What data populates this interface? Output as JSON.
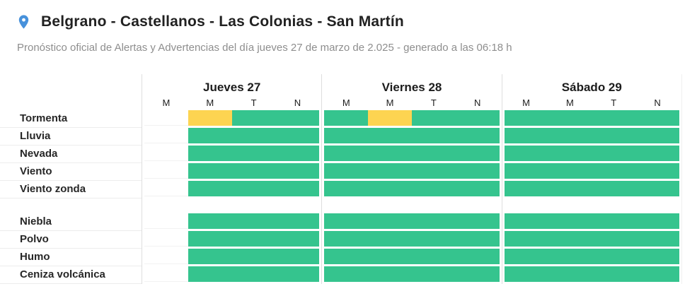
{
  "header": {
    "title": "Belgrano - Castellanos - Las Colonias - San Martín",
    "subtitle": "Pronóstico oficial de Alertas y Advertencias del día jueves 27 de marzo de 2.025 - generado a las 06:18 h",
    "pin_icon": "location-pin",
    "pin_color": "#4791db"
  },
  "colors": {
    "green": "#35c48e",
    "yellow": "#fdd451",
    "column_divider": "#dedede",
    "row_line": "#ececec",
    "title_text": "#212121",
    "subtitle_text": "#8e8e8e"
  },
  "chart_data": {
    "type": "heatmap",
    "title": "Belgrano - Castellanos - Las Colonias - San Martín",
    "subtitle": "Pronóstico oficial de Alertas y Advertencias del día jueves 27 de marzo de 2.025 - generado a las 06:18 h",
    "legend_position": "none",
    "grid": "light vertical dividers between days; light horizontal lines under row labels",
    "day_groups": [
      {
        "label": "Jueves 27",
        "periods": [
          "M",
          "M",
          "T",
          "N"
        ]
      },
      {
        "label": "Viernes 28",
        "periods": [
          "M",
          "M",
          "T",
          "N"
        ]
      },
      {
        "label": "Sábado 29",
        "periods": [
          "M",
          "M",
          "T",
          "N"
        ]
      }
    ],
    "state_colors": {
      "green": "#35c48e",
      "yellow": "#fdd451",
      "none": "transparent"
    },
    "row_groups": [
      {
        "rows": [
          {
            "label": "Tormenta",
            "states": [
              "none",
              "yellow",
              "green",
              "green",
              "green",
              "yellow",
              "green",
              "green",
              "green",
              "green",
              "green",
              "green"
            ]
          },
          {
            "label": "Lluvia",
            "states": [
              "none",
              "green",
              "green",
              "green",
              "green",
              "green",
              "green",
              "green",
              "green",
              "green",
              "green",
              "green"
            ]
          },
          {
            "label": "Nevada",
            "states": [
              "none",
              "green",
              "green",
              "green",
              "green",
              "green",
              "green",
              "green",
              "green",
              "green",
              "green",
              "green"
            ]
          },
          {
            "label": "Viento",
            "states": [
              "none",
              "green",
              "green",
              "green",
              "green",
              "green",
              "green",
              "green",
              "green",
              "green",
              "green",
              "green"
            ]
          },
          {
            "label": "Viento zonda",
            "states": [
              "none",
              "green",
              "green",
              "green",
              "green",
              "green",
              "green",
              "green",
              "green",
              "green",
              "green",
              "green"
            ]
          }
        ]
      },
      {
        "rows": [
          {
            "label": "Niebla",
            "states": [
              "none",
              "green",
              "green",
              "green",
              "green",
              "green",
              "green",
              "green",
              "green",
              "green",
              "green",
              "green"
            ]
          },
          {
            "label": "Polvo",
            "states": [
              "none",
              "green",
              "green",
              "green",
              "green",
              "green",
              "green",
              "green",
              "green",
              "green",
              "green",
              "green"
            ]
          },
          {
            "label": "Humo",
            "states": [
              "none",
              "green",
              "green",
              "green",
              "green",
              "green",
              "green",
              "green",
              "green",
              "green",
              "green",
              "green"
            ]
          },
          {
            "label": "Ceniza volcánica",
            "states": [
              "none",
              "green",
              "green",
              "green",
              "green",
              "green",
              "green",
              "green",
              "green",
              "green",
              "green",
              "green"
            ]
          }
        ]
      }
    ]
  }
}
